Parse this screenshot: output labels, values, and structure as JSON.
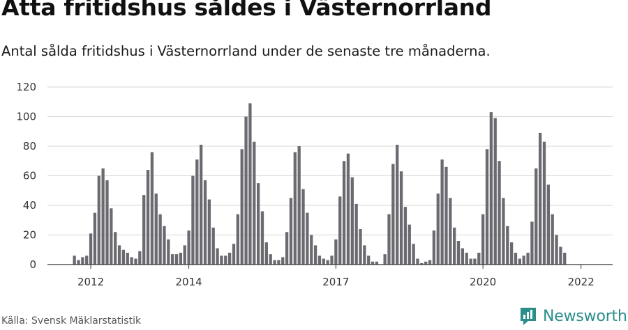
{
  "title": "Åtta fritidshus såldes i Västernorrland",
  "subtitle": "Antal sålda fritidshus i Västernorrland under de senaste tre månaderna.",
  "source": "Källa: Svensk Mäklarstatistik",
  "brand": "Newsworthy",
  "colors": {
    "bar": "#6b6a70",
    "highlight": "#2a9d96",
    "grid": "#d6d6d6",
    "brand": "#2a8f8a"
  },
  "chart_data": {
    "type": "bar",
    "ylim": [
      0,
      120
    ],
    "yticks": [
      0,
      20,
      40,
      60,
      80,
      100,
      120
    ],
    "xtick_labels": [
      {
        "label": "2012",
        "index": 4
      },
      {
        "label": "2014",
        "index": 28
      },
      {
        "label": "2017",
        "index": 64
      },
      {
        "label": "2020",
        "index": 100
      },
      {
        "label": "2022",
        "index": 124
      }
    ],
    "values": [
      6,
      3,
      5,
      6,
      21,
      35,
      60,
      65,
      57,
      38,
      22,
      13,
      10,
      8,
      5,
      4,
      9,
      47,
      64,
      76,
      48,
      34,
      26,
      17,
      7,
      7,
      8,
      13,
      23,
      60,
      71,
      81,
      57,
      44,
      25,
      11,
      6,
      6,
      8,
      14,
      34,
      78,
      100,
      109,
      83,
      55,
      36,
      15,
      7,
      3,
      3,
      5,
      22,
      45,
      76,
      80,
      51,
      35,
      20,
      13,
      6,
      4,
      3,
      6,
      17,
      46,
      70,
      75,
      59,
      41,
      24,
      13,
      6,
      2,
      2,
      0,
      7,
      34,
      68,
      81,
      63,
      39,
      27,
      14,
      4,
      1,
      2,
      3,
      23,
      48,
      71,
      66,
      45,
      25,
      16,
      11,
      8,
      4,
      4,
      8,
      34,
      78,
      103,
      99,
      70,
      45,
      26,
      15,
      8,
      4,
      6,
      8,
      29,
      65,
      89,
      83,
      54,
      34,
      20,
      12,
      8
    ],
    "highlight_index": 124,
    "highlight_label": "8"
  }
}
